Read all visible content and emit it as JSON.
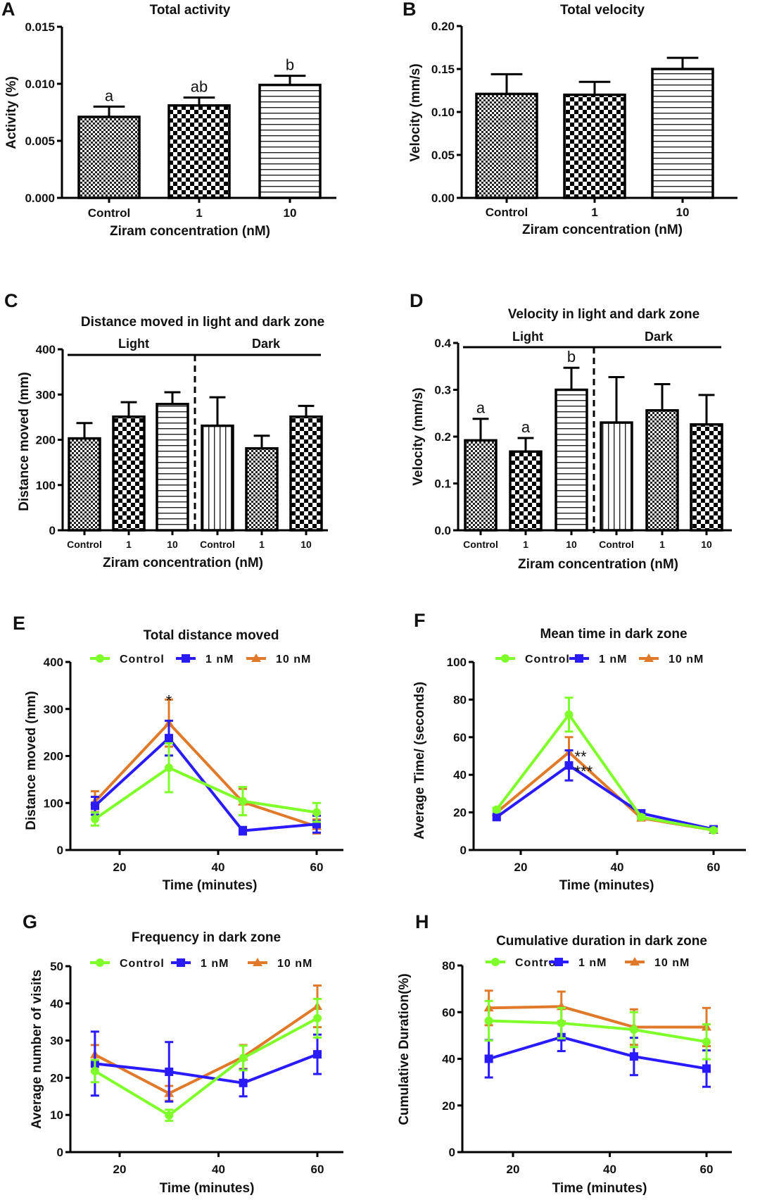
{
  "chart_data": [
    {
      "panel": "A",
      "type": "bar",
      "title": "Total activity",
      "xlabel": "Ziram concentration (nM)",
      "ylabel": "Activity (%)",
      "categories": [
        "Control",
        "1",
        "10"
      ],
      "values": [
        0.0071,
        0.0081,
        0.0099
      ],
      "errors": [
        0.0009,
        0.0007,
        0.0008
      ],
      "patterns": [
        "fine-check",
        "coarse-check",
        "hlines"
      ],
      "significance": [
        "a",
        "ab",
        "b"
      ],
      "ylim": [
        0,
        0.015
      ],
      "yticks": [
        "0.000",
        "0.005",
        "0.010",
        "0.015"
      ],
      "ytick_values": [
        0,
        0.005,
        0.01,
        0.015
      ]
    },
    {
      "panel": "B",
      "type": "bar",
      "title": "Total velocity",
      "xlabel": "Ziram concentration (nM)",
      "ylabel": "Velocity (mm/s)",
      "categories": [
        "Control",
        "1",
        "10"
      ],
      "values": [
        0.121,
        0.12,
        0.15
      ],
      "errors": [
        0.023,
        0.015,
        0.013
      ],
      "patterns": [
        "fine-check",
        "coarse-check",
        "hlines"
      ],
      "significance": [
        "",
        "",
        ""
      ],
      "ylim": [
        0,
        0.2
      ],
      "yticks": [
        "0.00",
        "0.05",
        "0.10",
        "0.15",
        "0.20"
      ],
      "ytick_values": [
        0,
        0.05,
        0.1,
        0.15,
        0.2
      ]
    },
    {
      "panel": "C",
      "type": "bar",
      "title": "Distance moved in light and dark zone",
      "xlabel": "Ziram concentration (nM)",
      "ylabel": "Distance moved (mm)",
      "groups": [
        "Light",
        "Dark"
      ],
      "categories": [
        "Control",
        "1",
        "10",
        "Control",
        "1",
        "10"
      ],
      "values": [
        203,
        251,
        279,
        231,
        181,
        251
      ],
      "errors": [
        34,
        32,
        26,
        63,
        28,
        24
      ],
      "patterns": [
        "fine-check",
        "coarse-check",
        "hlines",
        "vlines",
        "fine-check",
        "coarse-check"
      ],
      "significance": [
        "",
        "",
        "",
        "",
        "",
        ""
      ],
      "ylim": [
        0,
        400
      ],
      "yticks": [
        "0",
        "100",
        "200",
        "300",
        "400"
      ],
      "ytick_values": [
        0,
        100,
        200,
        300,
        400
      ]
    },
    {
      "panel": "D",
      "type": "bar",
      "title": "Velocity in light and dark zone",
      "xlabel": "Ziram concentration (nM)",
      "ylabel": "Velocity (mm/s)",
      "groups": [
        "Light",
        "Dark"
      ],
      "categories": [
        "Control",
        "1",
        "10",
        "Control",
        "1",
        "10"
      ],
      "values": [
        0.192,
        0.168,
        0.3,
        0.23,
        0.256,
        0.226
      ],
      "errors": [
        0.046,
        0.029,
        0.047,
        0.097,
        0.056,
        0.063
      ],
      "patterns": [
        "fine-check",
        "coarse-check",
        "hlines",
        "vlines",
        "fine-check",
        "coarse-check"
      ],
      "significance": [
        "a",
        "a",
        "b",
        "",
        "",
        ""
      ],
      "ylim": [
        0,
        0.4
      ],
      "yticks": [
        "0.0",
        "0.1",
        "0.2",
        "0.3",
        "0.4"
      ],
      "ytick_values": [
        0,
        0.1,
        0.2,
        0.3,
        0.4
      ]
    },
    {
      "panel": "E",
      "type": "line",
      "title": "Total distance moved",
      "xlabel": "Time (minutes)",
      "ylabel": "Distance moved (mm)",
      "x": [
        15,
        30,
        45,
        60
      ],
      "xlim": [
        10,
        65
      ],
      "xticks": [
        "20",
        "40",
        "60"
      ],
      "xtick_values": [
        20,
        40,
        60
      ],
      "ylim": [
        0,
        400
      ],
      "yticks": [
        "0",
        "100",
        "200",
        "300",
        "400"
      ],
      "ytick_values": [
        0,
        100,
        200,
        300,
        400
      ],
      "series": [
        {
          "name": "Control",
          "color": "#7fff2a",
          "marker": "circle",
          "values": [
            66,
            175,
            104,
            80
          ],
          "errors": [
            14,
            52,
            30,
            20
          ]
        },
        {
          "name": "1 nM",
          "color": "#2a1aff",
          "marker": "square",
          "values": [
            94,
            238,
            41,
            55
          ],
          "errors": [
            19,
            37,
            8,
            18
          ]
        },
        {
          "name": "10 nM",
          "color": "#e07a2a",
          "marker": "triangle",
          "values": [
            103,
            270,
            102,
            50
          ],
          "errors": [
            22,
            50,
            28,
            15
          ]
        }
      ],
      "annotations": [
        {
          "x": 30,
          "text": "*"
        }
      ]
    },
    {
      "panel": "F",
      "type": "line",
      "title": "Mean time in dark zone",
      "xlabel": "Time (minutes)",
      "ylabel": "Average Time/ (seconds)",
      "x": [
        15,
        30,
        45,
        60
      ],
      "xlim": [
        10,
        65
      ],
      "xticks": [
        "20",
        "40",
        "60"
      ],
      "xtick_values": [
        20,
        40,
        60
      ],
      "ylim": [
        0,
        100
      ],
      "yticks": [
        "0",
        "20",
        "40",
        "60",
        "80",
        "100"
      ],
      "ytick_values": [
        0,
        20,
        40,
        60,
        80,
        100
      ],
      "series": [
        {
          "name": "Control",
          "color": "#7fff2a",
          "marker": "circle",
          "values": [
            21.5,
            72,
            17.5,
            10.5
          ],
          "errors": [
            1,
            9,
            1,
            0.8
          ]
        },
        {
          "name": "1 nM",
          "color": "#2a1aff",
          "marker": "square",
          "values": [
            17.5,
            45,
            19.5,
            11
          ],
          "errors": [
            1,
            8,
            1.5,
            0.8
          ]
        },
        {
          "name": "10 nM",
          "color": "#e07a2a",
          "marker": "triangle",
          "values": [
            20,
            52,
            17,
            10.5
          ],
          "errors": [
            1,
            8,
            1,
            0.8
          ]
        }
      ],
      "annotations": [
        {
          "x": 30,
          "text": "**"
        },
        {
          "x": 30,
          "text": "***"
        }
      ]
    },
    {
      "panel": "G",
      "type": "line",
      "title": "Frequency in dark zone",
      "xlabel": "Time (minutes)",
      "ylabel": "Average number of visits",
      "x": [
        15,
        30,
        45,
        60
      ],
      "xlim": [
        10,
        65
      ],
      "xticks": [
        "20",
        "40",
        "60"
      ],
      "xtick_values": [
        20,
        40,
        60
      ],
      "ylim": [
        0,
        50
      ],
      "yticks": [
        "0",
        "10",
        "20",
        "30",
        "40",
        "50"
      ],
      "ytick_values": [
        0,
        10,
        20,
        30,
        40,
        50
      ],
      "series": [
        {
          "name": "Control",
          "color": "#7fff2a",
          "marker": "circle",
          "values": [
            21.8,
            9.9,
            25.3,
            36.0
          ],
          "errors": [
            3,
            1.5,
            3.3,
            5.2
          ]
        },
        {
          "name": "1 nM",
          "color": "#2a1aff",
          "marker": "square",
          "values": [
            23.8,
            21.6,
            18.6,
            26.3
          ],
          "errors": [
            8.6,
            8,
            3.6,
            5.3
          ]
        },
        {
          "name": "10 nM",
          "color": "#e07a2a",
          "marker": "triangle",
          "values": [
            26.2,
            15.8,
            25.6,
            39.2
          ],
          "errors": [
            2.6,
            2,
            3.2,
            5.6
          ]
        }
      ],
      "annotations": []
    },
    {
      "panel": "H",
      "type": "line",
      "title": "Cumulative duration in dark zone",
      "xlabel": "Time (minutes)",
      "ylabel": "Cumulative Duration(%)",
      "x": [
        15,
        30,
        45,
        60
      ],
      "xlim": [
        10,
        65
      ],
      "xticks": [
        "20",
        "40",
        "60"
      ],
      "xtick_values": [
        20,
        40,
        60
      ],
      "ylim": [
        0,
        80
      ],
      "yticks": [
        "0",
        "20",
        "40",
        "60",
        "80"
      ],
      "ytick_values": [
        0,
        20,
        40,
        60,
        80
      ],
      "series": [
        {
          "name": "Control",
          "color": "#7fff2a",
          "marker": "circle",
          "values": [
            56.3,
            55.3,
            52.5,
            47.3
          ],
          "errors": [
            8.5,
            6.5,
            7.5,
            7.5
          ]
        },
        {
          "name": "1 nM",
          "color": "#2a1aff",
          "marker": "square",
          "values": [
            40,
            49.3,
            41,
            35.8
          ],
          "errors": [
            8,
            6,
            8,
            7.8
          ]
        },
        {
          "name": "10 nM",
          "color": "#e07a2a",
          "marker": "triangle",
          "values": [
            61.8,
            62.4,
            53.6,
            53.6
          ],
          "errors": [
            7.4,
            6.4,
            7.6,
            8.2
          ]
        }
      ],
      "annotations": []
    }
  ],
  "panel_letters": [
    "A",
    "B",
    "C",
    "D",
    "E",
    "F",
    "G",
    "H"
  ]
}
